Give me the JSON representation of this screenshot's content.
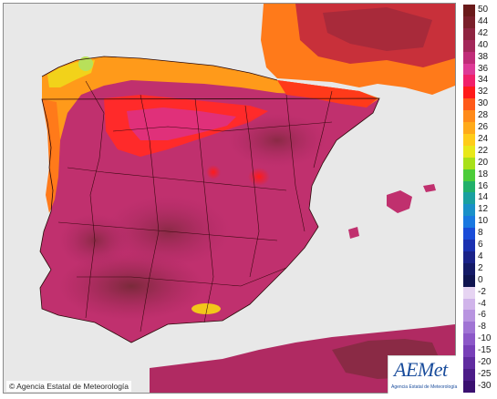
{
  "copyright_text": "© Agencia Estatal de Meteorología",
  "logo": {
    "name": "AEMet",
    "sub": "Agencia Estatal de Meteorología"
  },
  "legend": {
    "entries": [
      {
        "label": "50",
        "color": "#6a1a1a"
      },
      {
        "label": "44",
        "color": "#7a1f2a"
      },
      {
        "label": "42",
        "color": "#8e2440"
      },
      {
        "label": "40",
        "color": "#a3275a"
      },
      {
        "label": "38",
        "color": "#c02c78"
      },
      {
        "label": "36",
        "color": "#dd3a97"
      },
      {
        "label": "34",
        "color": "#f0206a"
      },
      {
        "label": "32",
        "color": "#ff1a1a"
      },
      {
        "label": "30",
        "color": "#ff5a1a"
      },
      {
        "label": "28",
        "color": "#ff8a1a"
      },
      {
        "label": "26",
        "color": "#ffaa1a"
      },
      {
        "label": "24",
        "color": "#ffcc1a"
      },
      {
        "label": "22",
        "color": "#e8e81a"
      },
      {
        "label": "20",
        "color": "#a8e01a"
      },
      {
        "label": "18",
        "color": "#4ccc3a"
      },
      {
        "label": "16",
        "color": "#22b06a"
      },
      {
        "label": "14",
        "color": "#1aa0a0"
      },
      {
        "label": "12",
        "color": "#1a90c8"
      },
      {
        "label": "10",
        "color": "#1a78e0"
      },
      {
        "label": "8",
        "color": "#1a4cd8"
      },
      {
        "label": "6",
        "color": "#1a30b0"
      },
      {
        "label": "4",
        "color": "#1a2288"
      },
      {
        "label": "2",
        "color": "#141a66"
      },
      {
        "label": "0",
        "color": "#0f1450"
      },
      {
        "label": "-2",
        "color": "#e6d4f2"
      },
      {
        "label": "-4",
        "color": "#d0b4ea"
      },
      {
        "label": "-6",
        "color": "#b894e0"
      },
      {
        "label": "-8",
        "color": "#a074d4"
      },
      {
        "label": "-10",
        "color": "#8c58c8"
      },
      {
        "label": "-15",
        "color": "#7840b8"
      },
      {
        "label": "-20",
        "color": "#602ca0"
      },
      {
        "label": "-25",
        "color": "#4c1c88"
      },
      {
        "label": "-30",
        "color": "#3a1070"
      }
    ]
  }
}
